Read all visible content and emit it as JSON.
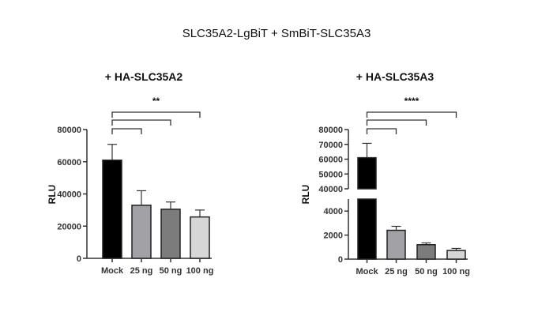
{
  "title": "SLC35A2-LgBiT + SmBiT-SLC35A3",
  "chart_data": [
    {
      "type": "bar",
      "title": "+ HA-SLC35A2",
      "ylabel": "RLU",
      "xlabel": "",
      "categories": [
        "Mock",
        "25 ng",
        "50 ng",
        "100 ng"
      ],
      "values": [
        61000,
        33000,
        30500,
        25700
      ],
      "error": [
        9800,
        9000,
        4500,
        4300
      ],
      "ylim": [
        0,
        80000
      ],
      "yticks": [
        0,
        20000,
        40000,
        60000,
        80000
      ],
      "ytick_labels": [
        "0",
        "20000",
        "40000",
        "60000",
        "80000"
      ],
      "colors": [
        "#000000",
        "#a2a2a6",
        "#7c7c7c",
        "#d6d6d6"
      ],
      "comparisons": [
        {
          "from": "Mock",
          "to": "25 ng",
          "label": ""
        },
        {
          "from": "Mock",
          "to": "50 ng",
          "label": ""
        },
        {
          "from": "Mock",
          "to": "100 ng",
          "label": "**"
        }
      ],
      "grid": false
    },
    {
      "type": "bar",
      "title": "+ HA-SLC35A3",
      "ylabel": "RLU",
      "xlabel": "",
      "categories": [
        "Mock",
        "25 ng",
        "50 ng",
        "100 ng"
      ],
      "values": [
        61000,
        2400,
        1200,
        720
      ],
      "error": [
        9700,
        330,
        150,
        170
      ],
      "ylim": [
        0,
        80000
      ],
      "axis_break": {
        "lower": [
          0,
          5000
        ],
        "upper": [
          40000,
          80000
        ]
      },
      "yticks": [
        0,
        2000,
        4000,
        40000,
        50000,
        60000,
        70000,
        80000
      ],
      "ytick_labels": [
        "0",
        "2000",
        "4000",
        "40000",
        "50000",
        "60000",
        "70000",
        "80000"
      ],
      "colors": [
        "#000000",
        "#a2a2a6",
        "#7c7c7c",
        "#d6d6d6"
      ],
      "comparisons": [
        {
          "from": "Mock",
          "to": "25 ng",
          "label": ""
        },
        {
          "from": "Mock",
          "to": "50 ng",
          "label": ""
        },
        {
          "from": "Mock",
          "to": "100 ng",
          "label": "****"
        }
      ],
      "grid": false
    }
  ]
}
